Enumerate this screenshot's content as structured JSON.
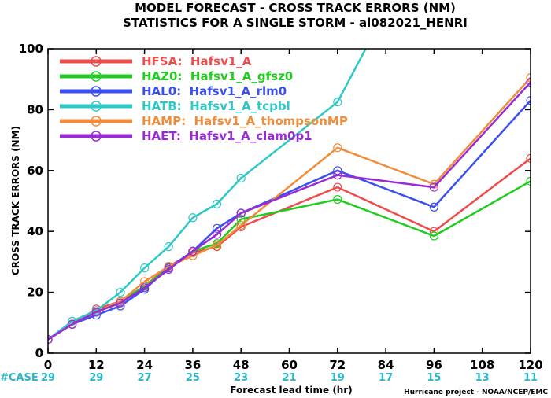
{
  "chart_data": {
    "type": "line",
    "title": "MODEL FORECAST - CROSS TRACK ERRORS (NM)",
    "subtitle": "STATISTICS FOR A SINGLE STORM - al082021_HENRI",
    "xlabel": "Forecast lead time (hr)",
    "ylabel": "CROSS TRACK ERRORS (NM)",
    "xlim": [
      0,
      120
    ],
    "ylim": [
      0,
      100
    ],
    "x_ticks": [
      0,
      12,
      24,
      36,
      48,
      60,
      72,
      84,
      96,
      108,
      120
    ],
    "y_ticks": [
      0,
      20,
      40,
      60,
      80,
      100
    ],
    "case_label": "#CASE",
    "case_counts": [
      29,
      29,
      27,
      25,
      23,
      21,
      19,
      17,
      15,
      13,
      11
    ],
    "credit": "Hurricane project - NOAA/NCEP/EMC",
    "grid": false,
    "legend_position": "top-left",
    "series": [
      {
        "name": "HFSA:  Hafsv1_A",
        "color": "#ef4b4b",
        "x": [
          0,
          6,
          12,
          18,
          24,
          30,
          36,
          42,
          48,
          72,
          96,
          120
        ],
        "y": [
          4.5,
          9.5,
          14.5,
          17,
          22,
          28.5,
          33,
          35,
          41.5,
          54.5,
          40,
          64
        ]
      },
      {
        "name": "HAZ0:  Hafsv1_A_gfsz0",
        "color": "#20cc20",
        "x": [
          0,
          6,
          12,
          18,
          24,
          30,
          36,
          42,
          48,
          72,
          96,
          120
        ],
        "y": [
          4.5,
          9.5,
          13.5,
          17,
          22,
          28,
          33.5,
          36,
          44,
          50.5,
          38.5,
          56.5
        ]
      },
      {
        "name": "HAL0:  Hafsv1_A_rlm0",
        "color": "#3a4ff0",
        "x": [
          0,
          6,
          12,
          18,
          24,
          30,
          36,
          42,
          48,
          72,
          96,
          120
        ],
        "y": [
          4.5,
          9.5,
          12.5,
          15.5,
          21,
          28,
          33.5,
          41,
          46,
          60,
          48,
          83
        ]
      },
      {
        "name": "HATB:  Hafsv1_A_tcpbl",
        "color": "#2ec8c8",
        "x": [
          0,
          6,
          12,
          18,
          24,
          30,
          36,
          42,
          48,
          72,
          79
        ],
        "y": [
          4.5,
          10.5,
          14,
          20,
          28,
          35,
          44.5,
          49,
          57.5,
          82.5,
          100
        ]
      },
      {
        "name": "HAMP:  Hafsv1_A_thompsonMP",
        "color": "#f08c3a",
        "x": [
          0,
          6,
          12,
          18,
          24,
          30,
          36,
          42,
          48,
          72,
          96,
          120
        ],
        "y": [
          4.5,
          9.5,
          13.5,
          17,
          23.5,
          28.5,
          32,
          35.5,
          42,
          67.5,
          55.5,
          90.5
        ]
      },
      {
        "name": "HAET:  Hafsv1_A_clam0p1",
        "color": "#9a2ad6",
        "x": [
          0,
          6,
          12,
          18,
          24,
          30,
          36,
          42,
          48,
          72,
          96,
          120
        ],
        "y": [
          4.5,
          9.5,
          13.5,
          16.5,
          21.5,
          27.5,
          33.5,
          39,
          46,
          58.5,
          54.5,
          89
        ]
      }
    ]
  }
}
